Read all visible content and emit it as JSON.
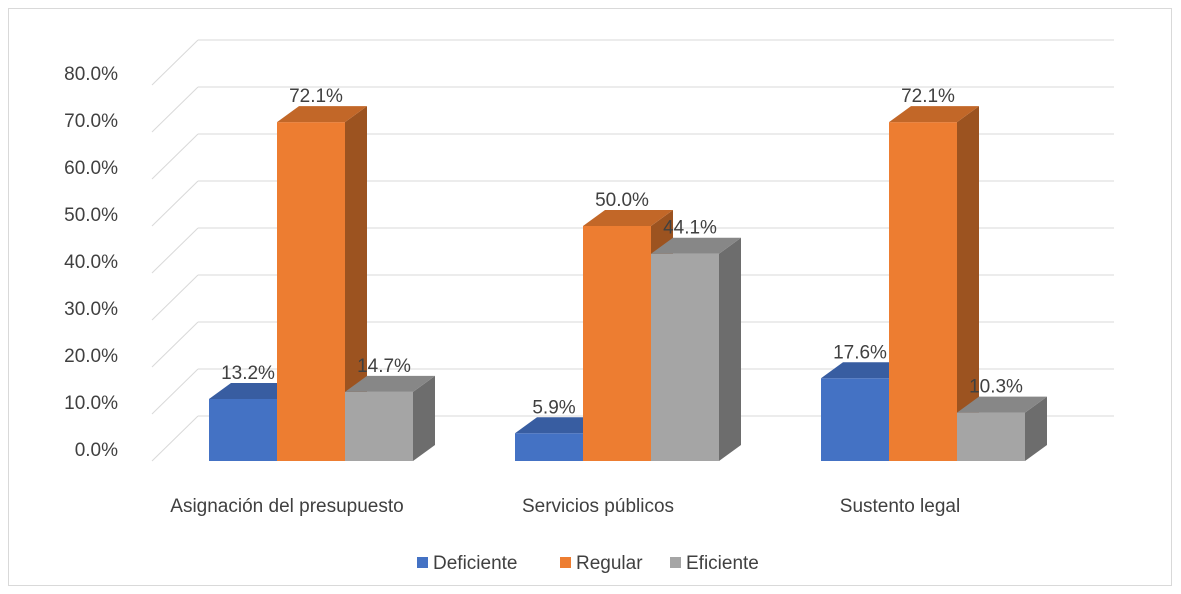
{
  "chart_data": {
    "type": "bar",
    "title": "",
    "xlabel": "",
    "ylabel": "",
    "categories": [
      "Asignación del presupuesto",
      "Servicios públicos",
      "Sustento legal"
    ],
    "series": [
      {
        "name": "Deficiente",
        "values": [
          13.2,
          5.9,
          17.6
        ],
        "labels": [
          "13.2%",
          "5.9%",
          "17.6%"
        ],
        "color": "#4472c4"
      },
      {
        "name": "Regular",
        "values": [
          72.1,
          50.0,
          72.1
        ],
        "labels": [
          "72.1%",
          "50.0%",
          "72.1%"
        ],
        "color": "#ed7d31"
      },
      {
        "name": "Eficiente",
        "values": [
          14.7,
          44.1,
          10.3
        ],
        "labels": [
          "14.7%",
          "44.1%",
          "10.3%"
        ],
        "color": "#a5a5a5"
      }
    ],
    "ylim": [
      0,
      80
    ],
    "y_ticks": [
      "0.0%",
      "10.0%",
      "20.0%",
      "30.0%",
      "40.0%",
      "50.0%",
      "60.0%",
      "70.0%",
      "80.0%"
    ],
    "grid": true,
    "three_d": true,
    "legend_position": "bottom"
  }
}
